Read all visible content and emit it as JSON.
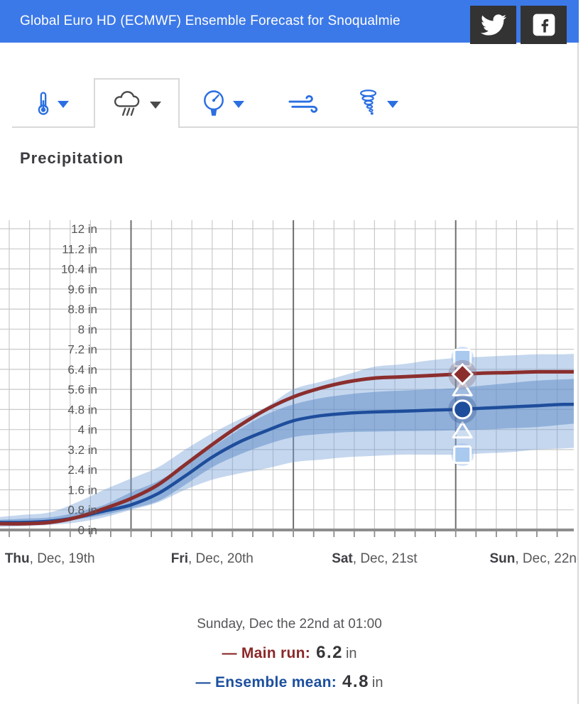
{
  "header": {
    "title": "Global Euro HD (ECMWF) Ensemble Forecast for Snoqualmie",
    "social_buttons": [
      {
        "name": "twitter",
        "bg": "#333333"
      },
      {
        "name": "facebook",
        "bg": "#333333"
      }
    ]
  },
  "tabs": [
    {
      "id": "temperature",
      "icon": "thermometer-icon",
      "active": false,
      "dropdown": true
    },
    {
      "id": "precipitation",
      "icon": "rain-cloud-icon",
      "active": true,
      "dropdown": true
    },
    {
      "id": "pressure",
      "icon": "gauge-icon",
      "active": false,
      "dropdown": true
    },
    {
      "id": "wind",
      "icon": "wind-icon",
      "active": false,
      "dropdown": false
    },
    {
      "id": "storm",
      "icon": "tornado-icon",
      "active": false,
      "dropdown": true
    }
  ],
  "section": {
    "title": "Precipitation"
  },
  "chart_data": {
    "type": "line",
    "title": "Precipitation",
    "unit": "in",
    "grid": true,
    "y_axis": {
      "min": 0,
      "max": 12,
      "step": 0.8,
      "unit": "in",
      "tick_labels": [
        "0 in",
        "0.8 in",
        "1.6 in",
        "2.4 in",
        "3.2 in",
        "4 in",
        "4.8 in",
        "5.6 in",
        "6.4 in",
        "7.2 in",
        "8 in",
        "8.8 in",
        "9.6 in",
        "10.4 in",
        "11.2 in",
        "12 in"
      ]
    },
    "x_axis": {
      "minor_step_hours": 3,
      "day_start_hours": [
        24,
        48,
        72
      ],
      "ticks": [
        {
          "day": "Thu",
          "rest": ", Dec, 19th",
          "center_hour": 12
        },
        {
          "day": "Fri",
          "rest": ", Dec, 20th",
          "center_hour": 36
        },
        {
          "day": "Sat",
          "rest": ", Dec, 21st",
          "center_hour": 60
        },
        {
          "day": "Sun",
          "rest": ", Dec, 22nd",
          "center_hour": 84
        }
      ]
    },
    "x_hours": [
      4,
      8,
      12,
      16,
      20,
      24,
      28,
      32,
      36,
      40,
      44,
      48,
      52,
      56,
      60,
      64,
      68,
      72,
      76,
      80,
      84,
      88,
      92
    ],
    "series": [
      {
        "name": "Main run",
        "color": "#8b2e2e",
        "values": [
          0.25,
          0.25,
          0.3,
          0.5,
          0.85,
          1.25,
          1.8,
          2.6,
          3.4,
          4.15,
          4.8,
          5.3,
          5.65,
          5.9,
          6.05,
          6.1,
          6.15,
          6.2,
          6.25,
          6.27,
          6.3,
          6.3,
          6.3
        ]
      },
      {
        "name": "Ensemble mean",
        "color": "#1e4d9b",
        "values": [
          0.3,
          0.3,
          0.35,
          0.5,
          0.75,
          1.0,
          1.45,
          2.15,
          2.9,
          3.5,
          3.95,
          4.35,
          4.55,
          4.65,
          4.7,
          4.73,
          4.77,
          4.8,
          4.85,
          4.9,
          4.95,
          5.0,
          5.0
        ]
      }
    ],
    "bands": [
      {
        "name": "ensemble-range-min-max",
        "color": "rgba(116,160,215,0.42)",
        "upper": [
          0.5,
          0.6,
          0.7,
          1.1,
          1.6,
          2.05,
          2.5,
          3.2,
          3.85,
          4.4,
          4.9,
          5.6,
          5.9,
          6.2,
          6.5,
          6.6,
          6.75,
          6.85,
          6.9,
          6.95,
          7.0,
          7.0,
          7.05
        ],
        "lower": [
          0.12,
          0.15,
          0.2,
          0.3,
          0.5,
          0.8,
          1.1,
          1.6,
          2.0,
          2.25,
          2.45,
          2.7,
          2.8,
          2.9,
          2.95,
          3.0,
          3.0,
          3.0,
          3.05,
          3.1,
          3.2,
          3.25,
          3.3
        ]
      },
      {
        "name": "ensemble-core-spread",
        "color": "rgba(100,143,203,0.55)",
        "upper": [
          0.4,
          0.45,
          0.5,
          0.7,
          1.0,
          1.5,
          1.95,
          2.6,
          3.3,
          4.0,
          4.6,
          5.0,
          5.25,
          5.4,
          5.5,
          5.55,
          5.6,
          5.65,
          5.75,
          5.85,
          5.95,
          6.0,
          6.05
        ],
        "lower": [
          0.22,
          0.25,
          0.3,
          0.42,
          0.6,
          0.85,
          1.15,
          1.8,
          2.5,
          3.0,
          3.4,
          3.7,
          3.82,
          3.9,
          3.92,
          3.94,
          3.95,
          3.97,
          4.0,
          4.05,
          4.1,
          4.2,
          4.3
        ]
      }
    ],
    "selected": {
      "label": "Sunday, Dec the 22nd at 01:00",
      "hour": 73,
      "markers": [
        {
          "shape": "square",
          "name": "ensemble-max-marker",
          "value": 6.85
        },
        {
          "shape": "triangle",
          "name": "ensemble-upper-spread-marker",
          "value": 5.65
        },
        {
          "shape": "diamond",
          "name": "main-run-marker",
          "value": 6.2
        },
        {
          "shape": "triangle",
          "name": "ensemble-lower-spread-marker",
          "value": 3.97
        },
        {
          "shape": "square",
          "name": "ensemble-min-marker",
          "value": 3.0
        },
        {
          "shape": "circle",
          "name": "ensemble-mean-marker",
          "value": 4.8
        }
      ]
    }
  },
  "footer": {
    "datetime": "Sunday, Dec the 22nd at 01:00",
    "rows": [
      {
        "dash": "—",
        "label": "Main run:",
        "value": "6.2",
        "unit": "in",
        "color": "#8b2828"
      },
      {
        "dash": "—",
        "label": "Ensemble mean:",
        "value": "4.8",
        "unit": "in",
        "color": "#1c4f9e"
      }
    ]
  },
  "colors": {
    "header_bg": "#3c79e8",
    "social_bg": "#333333",
    "tab_icon_blue": "#2b6fe2",
    "tab_icon_active": "#4a4a4a",
    "grid_minor": "#c9c9c9",
    "grid_day": "#6f6f6f",
    "axis": "#8d8d8d",
    "marker_square_fill": "#a9c9ef"
  }
}
